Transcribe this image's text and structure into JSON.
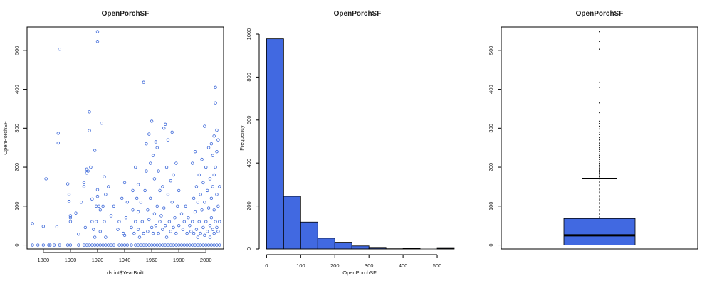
{
  "colors": {
    "accent": "#4169E1",
    "stroke": "#000000",
    "point": "#3a66d8"
  },
  "chart_data": [
    {
      "type": "scatter",
      "title": "OpenPorchSF",
      "xlabel": "ds.int$YearBuilt",
      "ylabel": "OpenPorchSF",
      "xlim": [
        1868,
        2013
      ],
      "ylim": [
        -10,
        560
      ],
      "xticks": [
        1880,
        1900,
        1920,
        1940,
        1960,
        1980,
        2000
      ],
      "yticks": [
        0,
        100,
        200,
        300,
        400,
        500
      ],
      "points": [
        [
          1872,
          55
        ],
        [
          1880,
          48
        ],
        [
          1882,
          170
        ],
        [
          1885,
          0
        ],
        [
          1890,
          47
        ],
        [
          1892,
          503
        ],
        [
          1891,
          287
        ],
        [
          1891,
          262
        ],
        [
          1898,
          157
        ],
        [
          1899,
          130
        ],
        [
          1899,
          112
        ],
        [
          1900,
          75
        ],
        [
          1900,
          60
        ],
        [
          1900,
          70
        ],
        [
          1904,
          82
        ],
        [
          1906,
          28
        ],
        [
          1908,
          110
        ],
        [
          1910,
          160
        ],
        [
          1910,
          150
        ],
        [
          1911,
          45
        ],
        [
          1912,
          195
        ],
        [
          1912,
          185
        ],
        [
          1913,
          190
        ],
        [
          1914,
          342
        ],
        [
          1914,
          294
        ],
        [
          1915,
          200
        ],
        [
          1916,
          118
        ],
        [
          1916,
          60
        ],
        [
          1917,
          40
        ],
        [
          1918,
          243
        ],
        [
          1918,
          20
        ],
        [
          1919,
          100
        ],
        [
          1919,
          60
        ],
        [
          1920,
          548
        ],
        [
          1920,
          523
        ],
        [
          1920,
          142
        ],
        [
          1920,
          125
        ],
        [
          1921,
          100
        ],
        [
          1922,
          90
        ],
        [
          1922,
          35
        ],
        [
          1923,
          313
        ],
        [
          1924,
          100
        ],
        [
          1925,
          175
        ],
        [
          1925,
          60
        ],
        [
          1926,
          130
        ],
        [
          1926,
          20
        ],
        [
          1928,
          150
        ],
        [
          1930,
          75
        ],
        [
          1932,
          100
        ],
        [
          1935,
          40
        ],
        [
          1936,
          60
        ],
        [
          1938,
          120
        ],
        [
          1939,
          30
        ],
        [
          1940,
          160
        ],
        [
          1940,
          25
        ],
        [
          1941,
          70
        ],
        [
          1942,
          110
        ],
        [
          1945,
          45
        ],
        [
          1946,
          140
        ],
        [
          1946,
          90
        ],
        [
          1947,
          30
        ],
        [
          1948,
          200
        ],
        [
          1948,
          60
        ],
        [
          1949,
          120
        ],
        [
          1950,
          85
        ],
        [
          1950,
          40
        ],
        [
          1950,
          155
        ],
        [
          1951,
          20
        ],
        [
          1952,
          110
        ],
        [
          1953,
          60
        ],
        [
          1954,
          418
        ],
        [
          1954,
          30
        ],
        [
          1955,
          140
        ],
        [
          1956,
          190
        ],
        [
          1956,
          260
        ],
        [
          1957,
          90
        ],
        [
          1957,
          35
        ],
        [
          1958,
          285
        ],
        [
          1958,
          65
        ],
        [
          1959,
          210
        ],
        [
          1959,
          120
        ],
        [
          1960,
          318
        ],
        [
          1960,
          45
        ],
        [
          1961,
          30
        ],
        [
          1961,
          230
        ],
        [
          1962,
          170
        ],
        [
          1962,
          80
        ],
        [
          1963,
          265
        ],
        [
          1963,
          50
        ],
        [
          1964,
          250
        ],
        [
          1964,
          100
        ],
        [
          1965,
          190
        ],
        [
          1965,
          30
        ],
        [
          1966,
          140
        ],
        [
          1966,
          60
        ],
        [
          1967,
          75
        ],
        [
          1968,
          150
        ],
        [
          1968,
          40
        ],
        [
          1969,
          300
        ],
        [
          1969,
          95
        ],
        [
          1970,
          310
        ],
        [
          1970,
          50
        ],
        [
          1971,
          200
        ],
        [
          1971,
          20
        ],
        [
          1972,
          270
        ],
        [
          1972,
          130
        ],
        [
          1973,
          60
        ],
        [
          1974,
          165
        ],
        [
          1974,
          35
        ],
        [
          1975,
          290
        ],
        [
          1975,
          110
        ],
        [
          1976,
          180
        ],
        [
          1976,
          45
        ],
        [
          1977,
          70
        ],
        [
          1978,
          210
        ],
        [
          1978,
          30
        ],
        [
          1979,
          100
        ],
        [
          1980,
          140
        ],
        [
          1980,
          50
        ],
        [
          1982,
          80
        ],
        [
          1983,
          40
        ],
        [
          1984,
          60
        ],
        [
          1985,
          100
        ],
        [
          1986,
          30
        ],
        [
          1987,
          70
        ],
        [
          1988,
          50
        ],
        [
          1989,
          35
        ],
        [
          1990,
          210
        ],
        [
          1990,
          60
        ],
        [
          1991,
          120
        ],
        [
          1991,
          30
        ],
        [
          1992,
          240
        ],
        [
          1992,
          85
        ],
        [
          1993,
          150
        ],
        [
          1993,
          40
        ],
        [
          1994,
          110
        ],
        [
          1994,
          20
        ],
        [
          1995,
          180
        ],
        [
          1995,
          60
        ],
        [
          1996,
          130
        ],
        [
          1996,
          30
        ],
        [
          1997,
          220
        ],
        [
          1997,
          90
        ],
        [
          1998,
          160
        ],
        [
          1998,
          45
        ],
        [
          1999,
          305
        ],
        [
          1999,
          110
        ],
        [
          1999,
          25
        ],
        [
          2000,
          200
        ],
        [
          2000,
          60
        ],
        [
          2001,
          140
        ],
        [
          2001,
          35
        ],
        [
          2002,
          250
        ],
        [
          2002,
          95
        ],
        [
          2003,
          170
        ],
        [
          2003,
          50
        ],
        [
          2003,
          20
        ],
        [
          2004,
          260
        ],
        [
          2004,
          120
        ],
        [
          2004,
          70
        ],
        [
          2005,
          230
        ],
        [
          2005,
          150
        ],
        [
          2005,
          40
        ],
        [
          2006,
          280
        ],
        [
          2006,
          180
        ],
        [
          2006,
          90
        ],
        [
          2006,
          30
        ],
        [
          2007,
          405
        ],
        [
          2007,
          365
        ],
        [
          2007,
          200
        ],
        [
          2007,
          60
        ],
        [
          2008,
          295
        ],
        [
          2008,
          240
        ],
        [
          2008,
          130
        ],
        [
          2008,
          45
        ],
        [
          2009,
          270
        ],
        [
          2009,
          100
        ],
        [
          2009,
          35
        ],
        [
          2010,
          150
        ],
        [
          2010,
          60
        ]
      ],
      "zero_points_x": [
        1872,
        1876,
        1880,
        1884,
        1888,
        1892,
        1898,
        1900,
        1906,
        1910,
        1912,
        1914,
        1916,
        1918,
        1920,
        1922,
        1924,
        1926,
        1928,
        1930,
        1932,
        1936,
        1938,
        1940,
        1942,
        1945,
        1948,
        1950,
        1952,
        1954,
        1956,
        1958,
        1960,
        1962,
        1964,
        1966,
        1968,
        1970,
        1972,
        1974,
        1976,
        1978,
        1980,
        1982,
        1984,
        1986,
        1988,
        1990,
        1992,
        1994,
        1996,
        1998,
        2000,
        2002,
        2004,
        2006,
        2008,
        2010
      ]
    },
    {
      "type": "bar",
      "title": "OpenPorchSF",
      "xlabel": "OpenPorchSF",
      "ylabel": "Frequency",
      "xlim": [
        -5,
        550
      ],
      "ylim": [
        0,
        1000
      ],
      "xticks": [
        0,
        100,
        200,
        300,
        400,
        500
      ],
      "yticks": [
        0,
        200,
        400,
        600,
        800,
        1000
      ],
      "bins": [
        {
          "from": 0,
          "to": 50,
          "count": 978
        },
        {
          "from": 50,
          "to": 100,
          "count": 245
        },
        {
          "from": 100,
          "to": 150,
          "count": 125
        },
        {
          "from": 150,
          "to": 200,
          "count": 50
        },
        {
          "from": 200,
          "to": 250,
          "count": 28
        },
        {
          "from": 250,
          "to": 300,
          "count": 14
        },
        {
          "from": 300,
          "to": 350,
          "count": 4
        },
        {
          "from": 350,
          "to": 400,
          "count": 1
        },
        {
          "from": 400,
          "to": 450,
          "count": 2
        },
        {
          "from": 450,
          "to": 500,
          "count": 0
        },
        {
          "from": 500,
          "to": 550,
          "count": 3
        }
      ]
    },
    {
      "type": "boxplot",
      "title": "OpenPorchSF",
      "ylim": [
        -10,
        560
      ],
      "yticks": [
        0,
        100,
        200,
        300,
        400,
        500
      ],
      "q1": 0,
      "median": 25,
      "q3": 68,
      "whisker_low": 0,
      "whisker_high": 170,
      "outliers": [
        175,
        178,
        182,
        185,
        188,
        192,
        195,
        198,
        202,
        205,
        210,
        215,
        220,
        225,
        230,
        234,
        240,
        245,
        250,
        256,
        262,
        270,
        276,
        284,
        290,
        298,
        305,
        312,
        318,
        340,
        365,
        405,
        418,
        503,
        523,
        548
      ]
    }
  ]
}
